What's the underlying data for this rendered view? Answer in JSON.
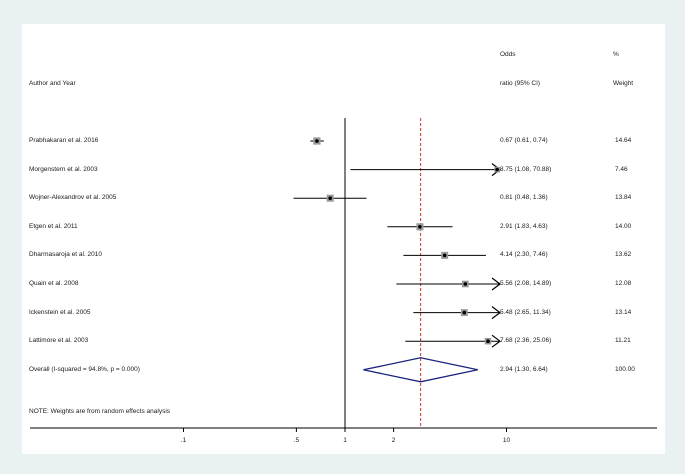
{
  "header": {
    "author_label": "Author and Year",
    "odds_label": "Odds",
    "ratio_label": "ratio (95% CI)",
    "pct_label": "%",
    "weight_label": "Weight"
  },
  "note": "NOTE: Weights are from random effects analysis",
  "colors": {
    "diamond": "#1a237e",
    "reference_line": "#c0392b",
    "marker": "#999999"
  },
  "chart_data": {
    "type": "forest",
    "x_scale": "log",
    "x_ticks": [
      0.1,
      0.5,
      1,
      2,
      10
    ],
    "x_tick_labels": [
      ".1",
      ".5",
      "1",
      "2",
      "10"
    ],
    "null_line": 1,
    "overall_line": 2.94,
    "studies": [
      {
        "name": "Prabhakaran et al. 2016",
        "or": 0.67,
        "lo": 0.61,
        "hi": 0.74,
        "ci_text": "0.67 (0.61, 0.74)",
        "weight": "14.64"
      },
      {
        "name": "Morgenstern et al. 2003",
        "or": 8.75,
        "lo": 1.08,
        "hi": 70.88,
        "ci_text": "8.75 (1.08, 70.88)",
        "weight": "7.46"
      },
      {
        "name": "Wojner-Alexandrov et al. 2005",
        "or": 0.81,
        "lo": 0.48,
        "hi": 1.36,
        "ci_text": "0.81 (0.48, 1.36)",
        "weight": "13.84"
      },
      {
        "name": "Etgen et al. 2011",
        "or": 2.91,
        "lo": 1.83,
        "hi": 4.63,
        "ci_text": "2.91 (1.83, 4.63)",
        "weight": "14.00"
      },
      {
        "name": "Dharmasaroja et al. 2010",
        "or": 4.14,
        "lo": 2.3,
        "hi": 7.46,
        "ci_text": "4.14 (2.30, 7.46)",
        "weight": "13.62"
      },
      {
        "name": "Quain et al. 2008",
        "or": 5.56,
        "lo": 2.08,
        "hi": 14.89,
        "ci_text": "5.56 (2.08, 14.89)",
        "weight": "12.08"
      },
      {
        "name": "Ickenstein et al. 2005",
        "or": 5.48,
        "lo": 2.65,
        "hi": 11.34,
        "ci_text": "5.48 (2.65, 11.34)",
        "weight": "13.14"
      },
      {
        "name": "Lattimore et al. 2003",
        "or": 7.68,
        "lo": 2.36,
        "hi": 25.06,
        "ci_text": "7.68 (2.36, 25.06)",
        "weight": "11.21"
      }
    ],
    "overall": {
      "name": "Overall  (I-squared = 94.8%, p = 0.000)",
      "or": 2.94,
      "lo": 1.3,
      "hi": 6.64,
      "ci_text": "2.94 (1.30, 6.64)",
      "weight": "100.00"
    }
  }
}
